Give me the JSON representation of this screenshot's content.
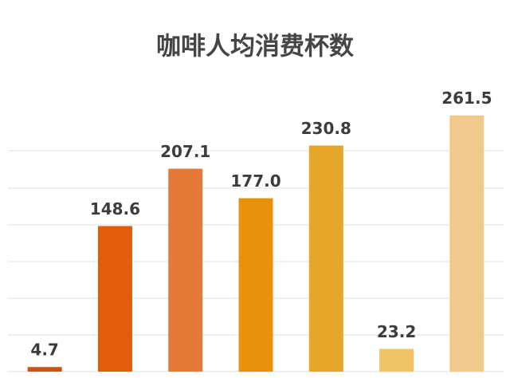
{
  "chart_data": {
    "type": "bar",
    "title": "咖啡人均消费杯数",
    "categories": [
      null,
      null,
      null,
      null,
      null,
      null,
      null
    ],
    "values": [
      4.7,
      148.6,
      207.1,
      177.0,
      230.8,
      23.2,
      261.5
    ],
    "value_labels": [
      "4.7",
      "148.6",
      "207.1",
      "177.0",
      "230.8",
      "23.2",
      "261.5"
    ],
    "colors": [
      "#c4561c",
      "#e25c0c",
      "#e57a38",
      "#e8910c",
      "#e5a62a",
      "#f0c465",
      "#f0ca8c"
    ],
    "ylim": [
      0,
      280
    ]
  }
}
